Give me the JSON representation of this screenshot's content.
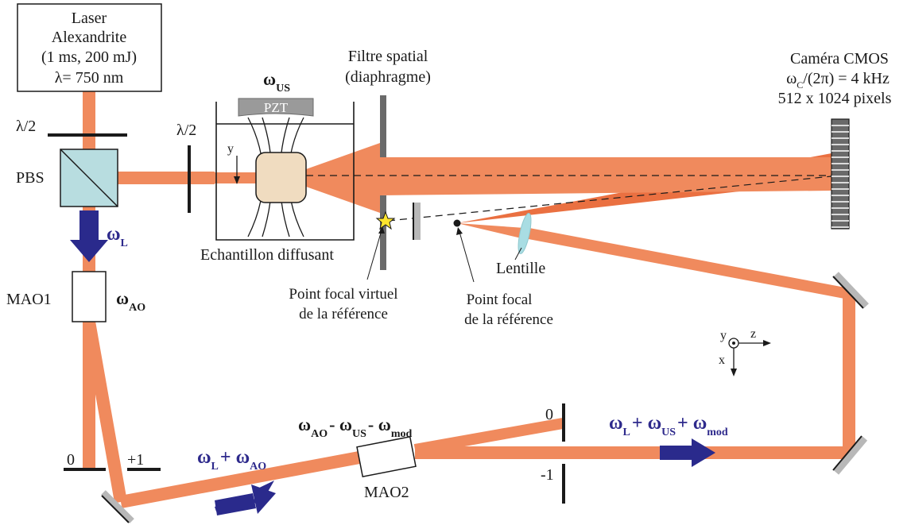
{
  "colors": {
    "beam": "#f08a5d",
    "beam_dark": "#e8602c",
    "arrow_blue": "#2a2a8c",
    "pbs_fill": "#b8dde0",
    "sample_fill": "#f0dcc0",
    "lens_fill": "#a9dde3",
    "mirror_gray": "#b8b8b8",
    "star_fill": "#ffe52e",
    "pzt_fill": "#9a9a9a"
  },
  "laser": {
    "line1": "Laser",
    "line2": "Alexandrite",
    "line3": "(1 ms, 200 mJ)",
    "line4": "λ= 750 nm"
  },
  "labels": {
    "half_wave_1": "λ/2",
    "half_wave_2": "λ/2",
    "pbs": "PBS",
    "mao1": "MAO1",
    "mao2": "MAO2",
    "pzt": "PZT",
    "y_axis_sample": "y",
    "sample": "Echantillon diffusant",
    "filter_line1": "Filtre spatial",
    "filter_line2": "(diaphragme)",
    "camera_line1": "Caméra CMOS",
    "camera_line2_pre": "ω",
    "camera_line2_sub": "C",
    "camera_line2_post": "/(2π) = 4 kHz",
    "camera_line3": "512 x 1024 pixels",
    "virtual_focal_line1": "Point focal virtuel",
    "virtual_focal_line2": "de la référence",
    "focal_line1": "Point focal",
    "focal_line2": "de la référence",
    "lens": "Lentille",
    "order_0_mao1": "0",
    "order_p1_mao1": "+1",
    "order_0_mao2": "0",
    "order_m1_mao2": "-1",
    "axis_y": "y",
    "axis_z": "z",
    "axis_x": "x"
  },
  "frequencies": {
    "us": {
      "base": "ω",
      "sub": "US"
    },
    "l": {
      "base": "ω",
      "sub": "L"
    },
    "ao": {
      "base": "ω",
      "sub": "AO"
    },
    "l_plus_ao": {
      "p1": "ω",
      "s1": "L",
      "op": "+ ",
      "p2": "ω",
      "s2": "AO"
    },
    "ao_us_mod": {
      "p1": "ω",
      "s1": "AO",
      "op1": "- ",
      "p2": "ω",
      "s2": "US",
      "op2": "- ",
      "p3": "ω",
      "s3": "mod"
    },
    "l_us_mod": {
      "p1": "ω",
      "s1": "L",
      "op1": "+ ",
      "p2": "ω",
      "s2": "US",
      "op2": "+ ",
      "p3": "ω",
      "s3": "mod"
    }
  }
}
